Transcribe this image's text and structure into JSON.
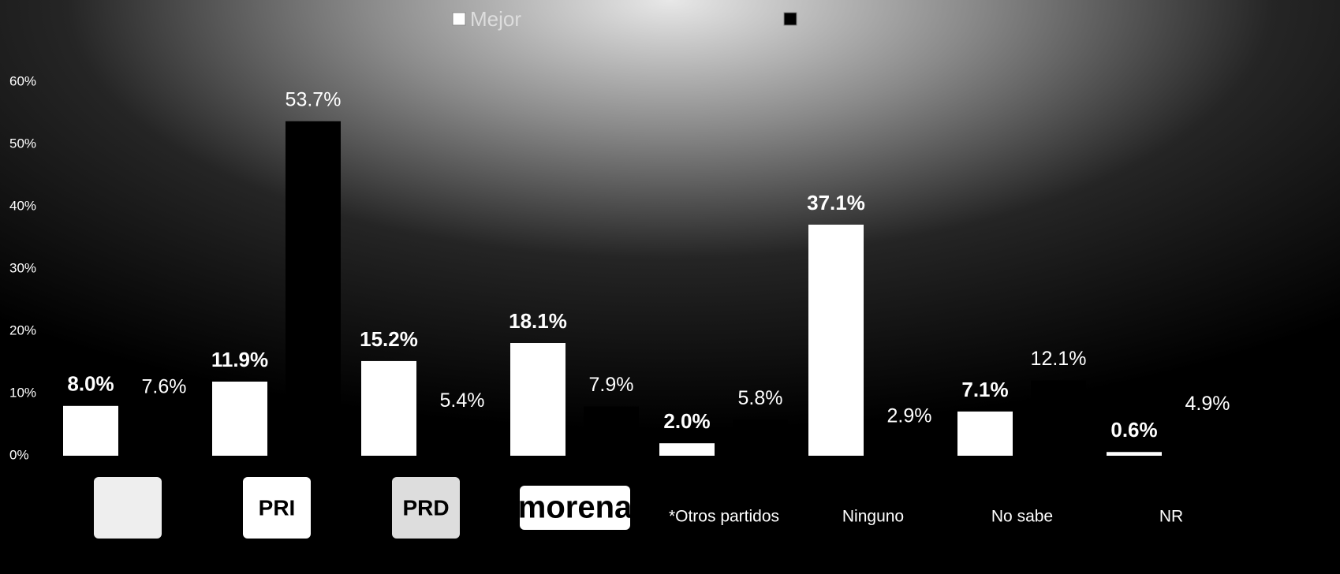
{
  "chart_data": {
    "type": "bar",
    "categories": [
      null,
      "PRI",
      "PRD",
      "morena",
      "*Otros partidos",
      "Ninguno",
      "No sabe",
      "NR"
    ],
    "series": [
      {
        "name": "Mejor",
        "color": "#ffffff",
        "values": [
          8.0,
          11.9,
          15.2,
          18.1,
          2.0,
          37.1,
          7.1,
          0.6
        ],
        "value_labels": [
          "8.0%",
          "11.9%",
          "15.2%",
          "18.1%",
          "2.0%",
          "37.1%",
          "7.1%",
          "0.6%"
        ]
      },
      {
        "color": "#000000",
        "values": [
          7.6,
          53.7,
          5.4,
          7.9,
          5.8,
          2.9,
          12.1,
          4.9
        ],
        "value_labels": [
          "7.6%",
          "53.7%",
          "5.4%",
          "7.9%",
          "5.8%",
          "2.9%",
          "12.1%",
          "4.9%"
        ]
      }
    ],
    "ylim": [
      0,
      60
    ],
    "yticks": [
      {
        "value": 0,
        "label": "0%"
      },
      {
        "value": 10,
        "label": "10%"
      },
      {
        "value": 20,
        "label": "20%"
      },
      {
        "value": 30,
        "label": "30%"
      },
      {
        "value": 40,
        "label": "40%"
      },
      {
        "value": 50,
        "label": "50%"
      },
      {
        "value": 60,
        "label": "60%"
      }
    ],
    "grid": false,
    "legend": "top"
  }
}
